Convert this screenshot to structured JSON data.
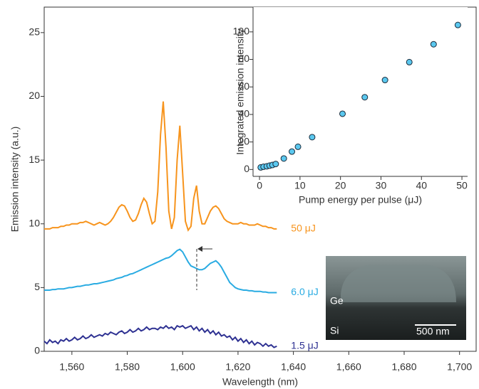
{
  "chart_data": [
    {
      "type": "line",
      "x_label": "Wavelength (nm)",
      "y_label": "Emission intensity (a.u.)",
      "xlim": [
        1550,
        1706
      ],
      "ylim": [
        0,
        27
      ],
      "xticks": [
        {
          "value": 1560,
          "label": "1,560"
        },
        {
          "value": 1580,
          "label": "1,580"
        },
        {
          "value": 1600,
          "label": "1,600"
        },
        {
          "value": 1620,
          "label": "1,620"
        },
        {
          "value": 1640,
          "label": "1,640"
        },
        {
          "value": 1660,
          "label": "1,660"
        },
        {
          "value": 1680,
          "label": "1,680"
        },
        {
          "value": 1700,
          "label": "1,700"
        }
      ],
      "yticks": [
        0,
        5,
        10,
        15,
        20,
        25
      ],
      "x": [
        1550,
        1551,
        1552,
        1553,
        1554,
        1555,
        1556,
        1557,
        1558,
        1559,
        1560,
        1561,
        1562,
        1563,
        1564,
        1565,
        1566,
        1567,
        1568,
        1569,
        1570,
        1571,
        1572,
        1573,
        1574,
        1575,
        1576,
        1577,
        1578,
        1579,
        1580,
        1581,
        1582,
        1583,
        1584,
        1585,
        1586,
        1587,
        1588,
        1589,
        1590,
        1591,
        1592,
        1593,
        1594,
        1595,
        1596,
        1597,
        1598,
        1599,
        1600,
        1601,
        1602,
        1603,
        1604,
        1605,
        1606,
        1607,
        1608,
        1609,
        1610,
        1611,
        1612,
        1613,
        1614,
        1615,
        1616,
        1617,
        1618,
        1619,
        1620,
        1621,
        1622,
        1623,
        1624,
        1625,
        1626,
        1627,
        1628,
        1629,
        1630,
        1631,
        1632,
        1633,
        1634
      ],
      "series": [
        {
          "name": "50 μJ",
          "color": "#f7941d",
          "values": [
            9.6,
            9.6,
            9.6,
            9.7,
            9.7,
            9.7,
            9.8,
            9.8,
            9.9,
            9.9,
            10.0,
            10.0,
            10.0,
            10.1,
            10.1,
            10.2,
            10.1,
            10.0,
            9.9,
            10.0,
            10.1,
            10.0,
            9.9,
            10.0,
            10.2,
            10.5,
            10.9,
            11.3,
            11.5,
            11.4,
            11.0,
            10.5,
            10.2,
            10.3,
            10.8,
            11.5,
            12.0,
            11.7,
            10.8,
            10.0,
            10.2,
            12.5,
            17.0,
            19.6,
            16.0,
            11.0,
            9.6,
            10.5,
            15.0,
            17.7,
            14.0,
            10.2,
            9.5,
            9.8,
            12.0,
            13.0,
            11.0,
            10.0,
            10.0,
            10.5,
            11.0,
            11.3,
            11.4,
            11.2,
            10.8,
            10.4,
            10.2,
            10.1,
            10.0,
            10.0,
            10.0,
            10.1,
            10.0,
            10.0,
            9.9,
            9.9,
            9.9,
            10.0,
            9.9,
            9.8,
            9.8,
            9.7,
            9.7,
            9.6,
            9.6
          ]
        },
        {
          "name": "6.0 μJ",
          "color": "#29abe2",
          "values": [
            4.8,
            4.8,
            4.8,
            4.85,
            4.85,
            4.9,
            4.9,
            4.9,
            4.95,
            5.0,
            5.0,
            5.05,
            5.1,
            5.1,
            5.15,
            5.2,
            5.2,
            5.25,
            5.3,
            5.3,
            5.35,
            5.4,
            5.45,
            5.5,
            5.55,
            5.6,
            5.7,
            5.75,
            5.8,
            5.9,
            5.95,
            6.05,
            6.1,
            6.2,
            6.3,
            6.4,
            6.5,
            6.6,
            6.7,
            6.8,
            6.9,
            7.0,
            7.1,
            7.2,
            7.3,
            7.35,
            7.5,
            7.7,
            7.9,
            8.0,
            7.8,
            7.4,
            7.0,
            6.7,
            6.6,
            6.5,
            6.4,
            6.4,
            6.5,
            6.7,
            6.9,
            7.0,
            7.1,
            6.9,
            6.6,
            6.2,
            5.8,
            5.4,
            5.2,
            5.0,
            4.9,
            4.85,
            4.8,
            4.8,
            4.75,
            4.75,
            4.7,
            4.7,
            4.7,
            4.65,
            4.65,
            4.6,
            4.6,
            4.6,
            4.6
          ]
        },
        {
          "name": "1.5 μJ",
          "color": "#2e3192",
          "values": [
            0.8,
            0.6,
            0.9,
            0.7,
            0.8,
            0.6,
            0.9,
            0.8,
            1.0,
            0.8,
            0.9,
            1.1,
            0.9,
            1.0,
            1.2,
            1.0,
            1.1,
            1.3,
            1.1,
            1.2,
            1.3,
            1.2,
            1.4,
            1.3,
            1.5,
            1.4,
            1.3,
            1.5,
            1.6,
            1.4,
            1.5,
            1.7,
            1.5,
            1.6,
            1.8,
            1.6,
            1.7,
            1.9,
            1.7,
            1.8,
            1.8,
            1.7,
            1.9,
            1.8,
            2.0,
            1.8,
            1.9,
            1.7,
            2.0,
            1.9,
            2.0,
            1.8,
            1.9,
            2.0,
            1.7,
            1.9,
            1.6,
            1.8,
            1.5,
            1.7,
            1.4,
            1.6,
            1.3,
            1.5,
            1.2,
            1.3,
            1.1,
            1.2,
            0.9,
            1.1,
            0.8,
            1.0,
            0.7,
            0.9,
            0.6,
            0.8,
            0.5,
            0.7,
            0.6,
            0.4,
            0.6,
            0.4,
            0.5,
            0.3,
            0.4
          ]
        }
      ],
      "annotations": [
        "Ge",
        "Si",
        "500 nm"
      ]
    },
    {
      "type": "scatter",
      "x_label": "Pump energy per pulse (μJ)",
      "y_label": "Integrated emission intensity",
      "xlim": [
        -1.6,
        51.4
      ],
      "ylim": [
        -5,
        118
      ],
      "xticks": [
        0,
        10,
        20,
        30,
        40,
        50
      ],
      "yticks": [
        0,
        20,
        40,
        60,
        80,
        100
      ],
      "color": "#5bc8ef",
      "x": [
        0.3,
        1,
        1.8,
        2.5,
        3.2,
        4,
        6,
        8,
        9.5,
        13,
        20.5,
        26,
        31,
        37,
        43,
        49
      ],
      "values": [
        1.5,
        2,
        2.3,
        2.8,
        3.3,
        4,
        8,
        13,
        16.5,
        23.5,
        40.5,
        52.5,
        65,
        78,
        91,
        105
      ]
    }
  ]
}
